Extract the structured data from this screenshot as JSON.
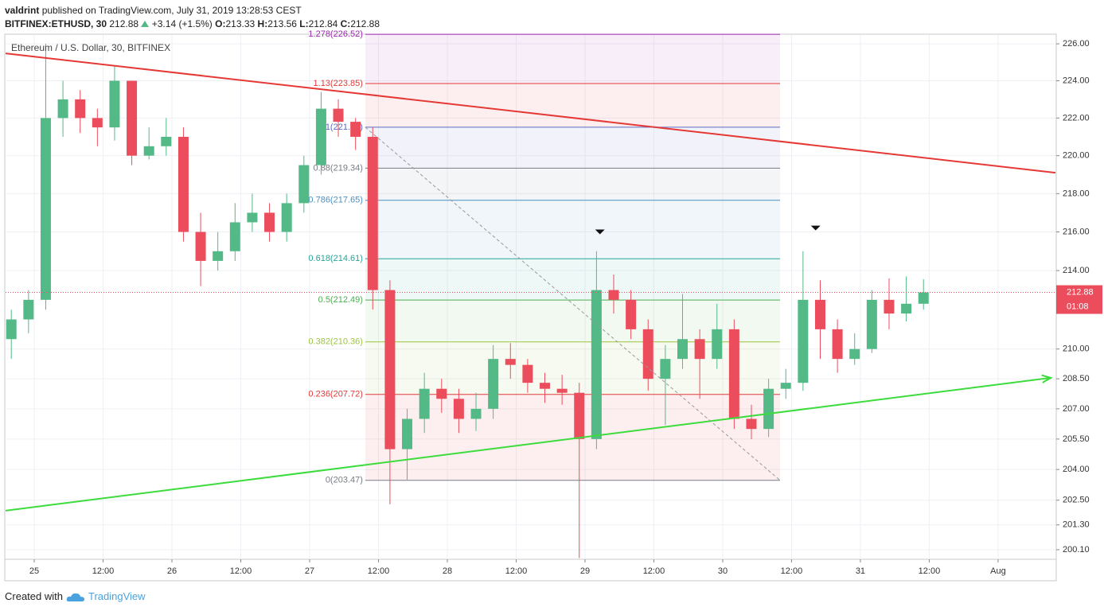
{
  "header": {
    "author": "valdrint",
    "published": "published on TradingView.com, July 31, 2019 13:28:53 CEST",
    "symbol": "BITFINEX:ETHUSD, 30",
    "price": "212.88",
    "change": "+3.14 (+1.5%)",
    "o_label": "O:",
    "o": "213.33",
    "h_label": "H:",
    "h": "213.56",
    "l_label": "L:",
    "l": "212.84",
    "c_label": "C:",
    "c": "212.88"
  },
  "footer": {
    "created": "Created with",
    "brand": "TradingView"
  },
  "chart_data": {
    "type": "candlestick",
    "legend": "Ethereum / U.S. Dollar, 30, BITFINEX",
    "log_scale": true,
    "grid": true,
    "up_color": "#53b987",
    "down_color": "#eb4d5c",
    "xlim": [
      -5,
      178
    ],
    "ylim": [
      199.64,
      226.48
    ],
    "xticks": [
      {
        "value": 0,
        "label": "25"
      },
      {
        "value": 12,
        "label": "12:00"
      },
      {
        "value": 24,
        "label": "26"
      },
      {
        "value": 36,
        "label": "12:00"
      },
      {
        "value": 48,
        "label": "27"
      },
      {
        "value": 60,
        "label": "12:00"
      },
      {
        "value": 72,
        "label": "28"
      },
      {
        "value": 84,
        "label": "12:00"
      },
      {
        "value": 96,
        "label": "29"
      },
      {
        "value": 108,
        "label": "12:00"
      },
      {
        "value": 120,
        "label": "30"
      },
      {
        "value": 132,
        "label": "12:00"
      },
      {
        "value": 144,
        "label": "31"
      },
      {
        "value": 156,
        "label": "12:00"
      },
      {
        "value": 168,
        "label": "Aug"
      }
    ],
    "yticks": [
      {
        "value": 226,
        "label": "226.00"
      },
      {
        "value": 224,
        "label": "224.00"
      },
      {
        "value": 222,
        "label": "222.00"
      },
      {
        "value": 220,
        "label": "220.00"
      },
      {
        "value": 218,
        "label": "218.00"
      },
      {
        "value": 216,
        "label": "216.00"
      },
      {
        "value": 214,
        "label": "214.00"
      },
      {
        "value": 210,
        "label": "210.00"
      },
      {
        "value": 208.5,
        "label": "208.50"
      },
      {
        "value": 207,
        "label": "207.00"
      },
      {
        "value": 205.5,
        "label": "205.50"
      },
      {
        "value": 204,
        "label": "204.00"
      },
      {
        "value": 202.5,
        "label": "202.50"
      },
      {
        "value": 201.3,
        "label": "201.30"
      },
      {
        "value": 200.1,
        "label": "200.10"
      }
    ],
    "x": [
      -4,
      -1,
      2,
      5,
      8,
      11,
      14,
      17,
      20,
      23,
      26,
      29,
      32,
      35,
      38,
      41,
      44,
      47,
      50,
      53,
      56,
      59,
      62,
      65,
      68,
      71,
      74,
      77,
      80,
      83,
      86,
      89,
      92,
      95,
      98,
      101,
      104,
      107,
      110,
      113,
      116,
      119,
      122,
      125,
      128,
      131,
      134,
      137,
      140,
      143,
      146,
      149,
      152,
      155
    ],
    "open": [
      210.5,
      211.5,
      212.5,
      222,
      223,
      222,
      221.5,
      224,
      220,
      220.5,
      221,
      216,
      214.5,
      215,
      216.5,
      217,
      216,
      217.5,
      219.5,
      222.5,
      221.8,
      221,
      213,
      205,
      206.5,
      208,
      207.5,
      206.5,
      207,
      209.5,
      209.2,
      208.3,
      208,
      207.8,
      205.5,
      213,
      212.5,
      211,
      208.5,
      209.5,
      210.5,
      209.5,
      211,
      206.5,
      206,
      208,
      208.3,
      212.5,
      211,
      209.5,
      210,
      212.5,
      211.8,
      212.3
    ],
    "high": [
      212,
      213,
      226,
      224,
      223.5,
      222.5,
      224.8,
      224,
      221.5,
      222,
      221.5,
      217,
      216,
      217.5,
      218,
      217.5,
      218,
      220,
      223.4,
      223,
      222,
      221.5,
      213.5,
      207,
      208.8,
      208.5,
      208,
      207.8,
      210.2,
      210.3,
      209.5,
      208.8,
      208.7,
      208.3,
      215,
      213.8,
      213,
      211.5,
      210.2,
      212.8,
      211,
      212.3,
      211.5,
      207.2,
      208.5,
      209,
      215,
      213.5,
      211.5,
      210.8,
      213,
      213.6,
      213.7,
      213.56
    ],
    "low": [
      209.5,
      210.8,
      212,
      221,
      221.2,
      220.5,
      220.8,
      219.5,
      219.8,
      220,
      215.5,
      213.2,
      214,
      214.5,
      216,
      215.5,
      215.5,
      217,
      219,
      221,
      220.3,
      212,
      202.3,
      203.5,
      205.8,
      206.8,
      205.8,
      205.9,
      206.5,
      208.5,
      207.8,
      207.3,
      207.2,
      199.7,
      205,
      211.8,
      210.5,
      207.9,
      206.2,
      209,
      207.5,
      209,
      206,
      205.5,
      205.6,
      207.5,
      207.9,
      209.5,
      208.8,
      209.2,
      209.8,
      211,
      211.4,
      212
    ],
    "close": [
      211.5,
      212.5,
      222,
      223,
      222,
      221.5,
      224,
      220,
      220.5,
      221,
      216,
      214.5,
      215,
      216.5,
      217,
      216,
      217.5,
      219.5,
      222.5,
      221.8,
      221,
      213,
      205,
      206.5,
      208,
      207.5,
      206.5,
      207,
      209.5,
      209.2,
      208.3,
      208,
      207.8,
      205.5,
      213,
      212.5,
      211,
      208.5,
      209.5,
      210.5,
      209.5,
      211,
      206.5,
      206,
      208,
      208.3,
      212.5,
      211,
      209.5,
      210,
      212.5,
      211.8,
      212.3,
      212.88
    ],
    "last_price": {
      "value": 212.88,
      "label": "212.88",
      "countdown": "01:08",
      "color": "#eb4d5c"
    },
    "fib": {
      "x": [
        57.7,
        130
      ],
      "levels": [
        {
          "label": "1.278(226.52)",
          "value": 226.52,
          "color": "#9c27b0"
        },
        {
          "label": "1.13(223.85)",
          "value": 223.85,
          "color": "#e53935"
        },
        {
          "label": "1(221.51)",
          "value": 221.51,
          "color": "#5c6bc0"
        },
        {
          "label": "0.88(219.34)",
          "value": 219.34,
          "color": "#787b86"
        },
        {
          "label": "0.786(217.65)",
          "value": 217.65,
          "color": "#4a90c2"
        },
        {
          "label": "0.618(214.61)",
          "value": 214.61,
          "color": "#26a69a"
        },
        {
          "label": "0.5(212.49)",
          "value": 212.49,
          "color": "#4caf50"
        },
        {
          "label": "0.382(210.36)",
          "value": 210.36,
          "color": "#9bc53d"
        },
        {
          "label": "0.236(207.72)",
          "value": 207.72,
          "color": "#e53935"
        },
        {
          "label": "0(203.47)",
          "value": 203.47,
          "color": "#787b86"
        }
      ]
    },
    "trendlines": [
      {
        "color": "#e53935",
        "x": [
          -5,
          178
        ],
        "y": [
          225.48,
          219.1
        ],
        "dash": false,
        "arrow": false
      },
      {
        "color": "#3ddc3d",
        "x": [
          -5,
          177.2
        ],
        "y": [
          201.99,
          208.55
        ],
        "dash": false,
        "arrow": true
      },
      {
        "color": "#999999",
        "x": [
          57.7,
          130
        ],
        "y": [
          221.51,
          203.47
        ],
        "dash": true,
        "arrow": false
      }
    ],
    "markers": {
      "x": [
        98.6,
        136.2
      ],
      "y": [
        216.0,
        216.2
      ]
    }
  }
}
